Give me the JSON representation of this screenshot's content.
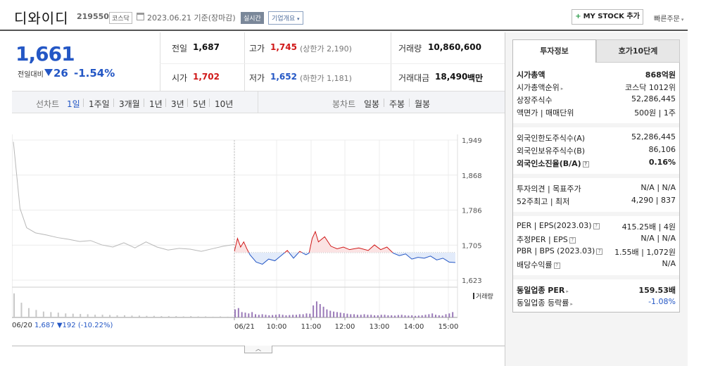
{
  "header": {
    "name": "디와이디",
    "code": "219550",
    "market": "코스닥",
    "date": "2023.06.21",
    "date_suffix": "기준(장마감)",
    "realtime": "실시간",
    "overview": "기업개요",
    "mystock": "MY STOCK 추가",
    "quick_order": "빠른주문"
  },
  "summary": {
    "price": "1,661",
    "change_label": "전일대비",
    "change": "26",
    "change_pct": "-1.54%",
    "prev_label": "전일",
    "prev": "1,687",
    "open_label": "시가",
    "open": "1,702",
    "high_label": "고가",
    "high": "1,745",
    "upper_limit": "(상한가 2,190)",
    "low_label": "저가",
    "low": "1,652",
    "lower_limit": "(하한가 1,181)",
    "volume_label": "거래량",
    "volume": "10,860,600",
    "amount_label": "거래대금",
    "amount": "18,490",
    "amount_unit": "백만"
  },
  "chart_toolbar": {
    "line_label": "선차트",
    "periods": [
      "1일",
      "1주일",
      "3개월",
      "1년",
      "3년",
      "5년",
      "10년"
    ],
    "candle_label": "봉차트",
    "candles": [
      "일봉",
      "주봉",
      "월봉"
    ]
  },
  "chart_data": {
    "type": "line",
    "y_ticks": [
      "1,949",
      "1,868",
      "1,786",
      "1,705",
      "1,623"
    ],
    "ylim": [
      1623,
      1949
    ],
    "baseline": 1687,
    "x_labels": [
      "06/20",
      "06/21",
      "10:00",
      "11:00",
      "12:00",
      "13:00",
      "14:00",
      "15:00"
    ],
    "volume_label": "거래량",
    "prev_day": {
      "date": "06/20",
      "close": "1,687",
      "change": "▼192",
      "pct": "(-10.22%)"
    },
    "prev_series": [
      {
        "x": 0,
        "y": 1945
      },
      {
        "x": 3,
        "y": 1790
      },
      {
        "x": 6,
        "y": 1745
      },
      {
        "x": 10,
        "y": 1733
      },
      {
        "x": 15,
        "y": 1728
      },
      {
        "x": 20,
        "y": 1722
      },
      {
        "x": 25,
        "y": 1718
      },
      {
        "x": 30,
        "y": 1713
      },
      {
        "x": 35,
        "y": 1715
      },
      {
        "x": 40,
        "y": 1705
      },
      {
        "x": 45,
        "y": 1700
      },
      {
        "x": 50,
        "y": 1710
      },
      {
        "x": 55,
        "y": 1698
      },
      {
        "x": 60,
        "y": 1712
      },
      {
        "x": 65,
        "y": 1700
      },
      {
        "x": 70,
        "y": 1693
      },
      {
        "x": 75,
        "y": 1697
      },
      {
        "x": 80,
        "y": 1695
      },
      {
        "x": 85,
        "y": 1690
      },
      {
        "x": 90,
        "y": 1696
      },
      {
        "x": 95,
        "y": 1702
      },
      {
        "x": 100,
        "y": 1706
      }
    ],
    "today_series": [
      {
        "x": 0,
        "y": 1690
      },
      {
        "x": 1,
        "y": 1720
      },
      {
        "x": 2,
        "y": 1700
      },
      {
        "x": 3,
        "y": 1712
      },
      {
        "x": 4,
        "y": 1696
      },
      {
        "x": 5,
        "y": 1682
      },
      {
        "x": 7,
        "y": 1665
      },
      {
        "x": 9,
        "y": 1660
      },
      {
        "x": 11,
        "y": 1672
      },
      {
        "x": 13,
        "y": 1668
      },
      {
        "x": 15,
        "y": 1680
      },
      {
        "x": 17,
        "y": 1692
      },
      {
        "x": 19,
        "y": 1674
      },
      {
        "x": 21,
        "y": 1690
      },
      {
        "x": 23,
        "y": 1682
      },
      {
        "x": 24,
        "y": 1686
      },
      {
        "x": 25,
        "y": 1720
      },
      {
        "x": 26,
        "y": 1736
      },
      {
        "x": 27,
        "y": 1712
      },
      {
        "x": 29,
        "y": 1724
      },
      {
        "x": 31,
        "y": 1702
      },
      {
        "x": 33,
        "y": 1696
      },
      {
        "x": 35,
        "y": 1700
      },
      {
        "x": 37,
        "y": 1694
      },
      {
        "x": 40,
        "y": 1698
      },
      {
        "x": 43,
        "y": 1692
      },
      {
        "x": 45,
        "y": 1705
      },
      {
        "x": 47,
        "y": 1694
      },
      {
        "x": 49,
        "y": 1700
      },
      {
        "x": 51,
        "y": 1686
      },
      {
        "x": 53,
        "y": 1680
      },
      {
        "x": 55,
        "y": 1684
      },
      {
        "x": 57,
        "y": 1672
      },
      {
        "x": 59,
        "y": 1676
      },
      {
        "x": 61,
        "y": 1674
      },
      {
        "x": 63,
        "y": 1679
      },
      {
        "x": 65,
        "y": 1670
      },
      {
        "x": 67,
        "y": 1674
      },
      {
        "x": 69,
        "y": 1665
      },
      {
        "x": 71,
        "y": 1664
      }
    ],
    "volume_prev": [
      0.9,
      0.55,
      0.35,
      0.28,
      0.22,
      0.2,
      0.18,
      0.15,
      0.14,
      0.13,
      0.12,
      0.1,
      0.1,
      0.09,
      0.08,
      0.08,
      0.07,
      0.07,
      0.06,
      0.06,
      0.05,
      0.05,
      0.05,
      0.04,
      0.05,
      0.04,
      0.04,
      0.03,
      0.04,
      0.03
    ],
    "volume_today": [
      0.3,
      0.35,
      0.2,
      0.18,
      0.15,
      0.2,
      0.12,
      0.1,
      0.12,
      0.1,
      0.08,
      0.09,
      0.1,
      0.12,
      0.1,
      0.08,
      0.09,
      0.1,
      0.1,
      0.12,
      0.12,
      0.15,
      0.14,
      0.45,
      0.6,
      0.5,
      0.4,
      0.3,
      0.25,
      0.22,
      0.2,
      0.18,
      0.16,
      0.14,
      0.12,
      0.12,
      0.1,
      0.1,
      0.12,
      0.1,
      0.1,
      0.08,
      0.08,
      0.1,
      0.1,
      0.08,
      0.08,
      0.07,
      0.09,
      0.1,
      0.08,
      0.07,
      0.08,
      0.06,
      0.07,
      0.08,
      0.1,
      0.12,
      0.15,
      0.1,
      0.08,
      0.07,
      0.12,
      0.15,
      0.2
    ]
  },
  "panel": {
    "tabs": [
      "투자정보",
      "호가10단계"
    ],
    "rows": [
      {
        "k": "시가총액",
        "v": "868억원"
      },
      {
        "k": "시가총액순위",
        "v": "코스닥 1012위"
      },
      {
        "k": "상장주식수",
        "v": "52,286,445"
      },
      {
        "k": "액면가 | 매매단위",
        "v": "500원 | 1주"
      },
      {
        "k": "외국인한도주식수(A)",
        "v": "52,286,445"
      },
      {
        "k": "외국인보유주식수(B)",
        "v": "86,106"
      },
      {
        "k": "외국인소진율(B/A)",
        "v": "0.16%"
      },
      {
        "k": "투자의견 | 목표주가",
        "v": "N/A | N/A"
      },
      {
        "k": "52주최고 | 최저",
        "v": "4,290 | 837"
      },
      {
        "k": "PER | EPS(2023.03)",
        "v": "415.25배 | 4원"
      },
      {
        "k": "추정PER | EPS",
        "v": "N/A | N/A"
      },
      {
        "k": "PBR | BPS (2023.03)",
        "v": "1.55배 | 1,072원"
      },
      {
        "k": "배당수익률",
        "v": "N/A"
      },
      {
        "k": "동일업종 PER",
        "v": "159.53배"
      },
      {
        "k": "동일업종 등락률",
        "v": "-1.08%"
      }
    ]
  },
  "colors": {
    "up": "#d01818",
    "down": "#2457c5",
    "prev_line": "#b8b8b8"
  }
}
